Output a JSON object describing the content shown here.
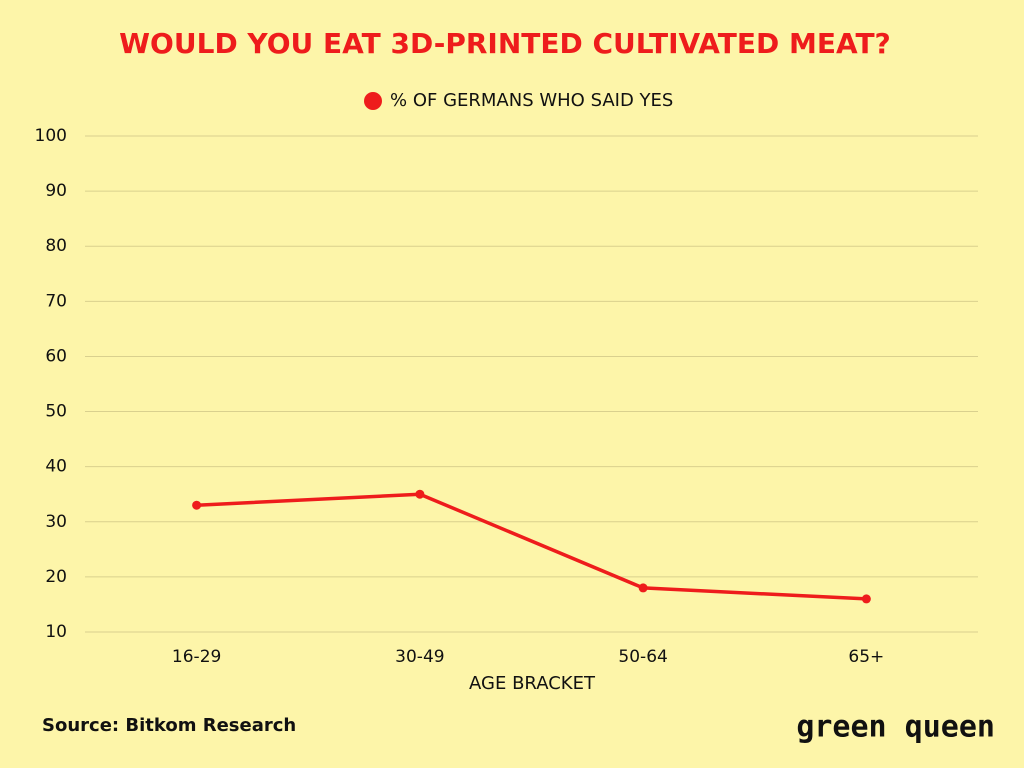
{
  "chart_data": {
    "type": "line",
    "title": "WOULD YOU EAT 3D-PRINTED CULTIVATED MEAT?",
    "categories": [
      "16-29",
      "30-49",
      "50-64",
      "65+"
    ],
    "series": [
      {
        "name": "% OF GERMANS WHO SAID YES",
        "color": "#ee1c1c",
        "values": [
          33,
          35,
          18,
          16
        ]
      }
    ],
    "xlabel": "AGE BRACKET",
    "ylim": [
      10,
      100
    ],
    "yticks": [
      10,
      20,
      30,
      40,
      50,
      60,
      70,
      80,
      90,
      100
    ],
    "grid": true,
    "legend": "top",
    "source": "Source: Bitkom Research",
    "brand": "green queen"
  }
}
